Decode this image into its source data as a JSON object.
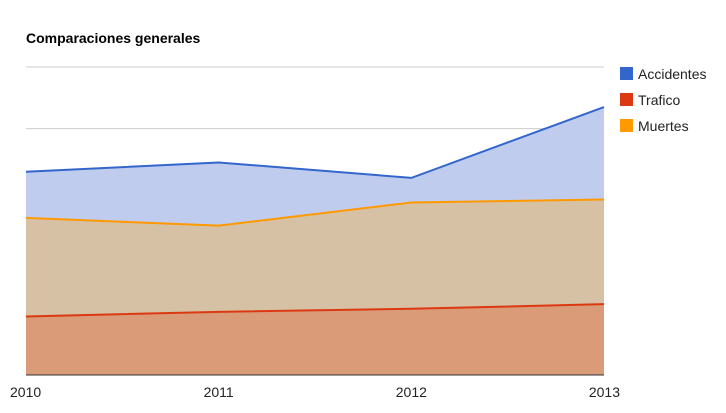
{
  "chart_data": {
    "type": "area",
    "title": "Comparaciones generales",
    "categories": [
      "2010",
      "2011",
      "2012",
      "2013"
    ],
    "ylim": [
      0,
      100
    ],
    "grid": true,
    "legend_position": "right",
    "series": [
      {
        "name": "Accidentes",
        "color": "#3366cc",
        "fill": "#c0ccee",
        "values": [
          66,
          69,
          64,
          87
        ]
      },
      {
        "name": "Trafico",
        "color": "#dc3912",
        "fill": "#d99b78",
        "values": [
          19,
          20.5,
          21.5,
          23
        ]
      },
      {
        "name": "Muertes",
        "color": "#ff9900",
        "fill": "#d6c1a5",
        "values": [
          51,
          48.5,
          56,
          57
        ]
      }
    ]
  }
}
